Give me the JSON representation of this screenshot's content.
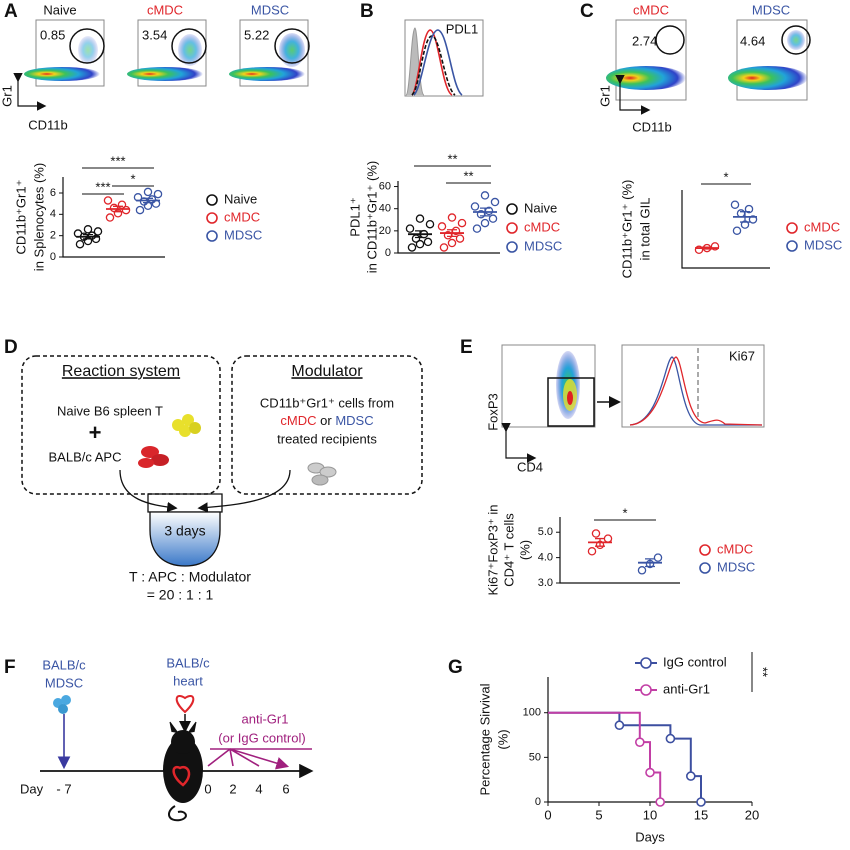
{
  "panel_letters": [
    "A",
    "B",
    "C",
    "D",
    "E",
    "F",
    "G"
  ],
  "panel_a_flow": {
    "axis_y": "Gr1",
    "axis_x": "CD11b",
    "plots": [
      {
        "label": "Naive",
        "gate": 0.85
      },
      {
        "label": "cMDC",
        "gate": 3.54
      },
      {
        "label": "MDSC",
        "gate": 5.22
      }
    ]
  },
  "panel_b_histogram": {
    "label": "PDL1"
  },
  "panel_c_flow": {
    "axis_y": "Gr1",
    "axis_x": "CD11b",
    "plots": [
      {
        "label": "cMDC",
        "gate": 2.74
      },
      {
        "label": "MDSC",
        "gate": 4.64
      }
    ]
  },
  "panel_d": {
    "reaction_title": "Reaction system",
    "reaction_lines": [
      "Naive B6 spleen T",
      "+",
      "BALB/c APC"
    ],
    "modulator_title": "Modulator",
    "modulator_lines": [
      "CD11b⁺Gr1⁺ cells from",
      "treated recipients"
    ],
    "modulator_source": [
      "cMDC",
      "or",
      "MDSC"
    ],
    "vessel_label": "3 days",
    "ratio_lines": [
      "T  : APC : Modulator",
      "=    20 : 1 : 1"
    ]
  },
  "panel_e_flow": {
    "axis_y": "FoxP3",
    "axis_x": "CD4",
    "histogram_label": "Ki67"
  },
  "panel_f": {
    "donor": [
      "BALB/c",
      "MDSC"
    ],
    "graft": [
      "BALB/c",
      "heart"
    ],
    "treatment": [
      "anti-Gr1",
      "(or IgG control)"
    ],
    "day_label": "Day",
    "days": [
      "- 7",
      "0",
      "2",
      "4",
      "6"
    ]
  },
  "chart_data": [
    {
      "type": "strip",
      "y_label": [
        "CD11b⁺Gr1⁺",
        "in Splenocytes (%)"
      ],
      "ylim": [
        0,
        7.5
      ],
      "yticks": [
        0,
        2,
        4,
        6
      ],
      "series": [
        {
          "name": "Naive",
          "color": "#111111",
          "values": [
            1.2,
            1.5,
            1.7,
            1.9,
            2.0,
            2.2,
            2.4,
            2.6
          ],
          "mean": 1.9,
          "sem": 0.2
        },
        {
          "name": "cMDC",
          "color": "#e0262b",
          "values": [
            3.7,
            4.1,
            4.4,
            4.6,
            4.9,
            5.3
          ],
          "mean": 4.5,
          "sem": 0.25
        },
        {
          "name": "MDSC",
          "color": "#3a55a4",
          "values": [
            4.4,
            4.8,
            5.0,
            5.2,
            5.4,
            5.6,
            5.9,
            6.1
          ],
          "mean": 5.3,
          "sem": 0.2
        }
      ],
      "significance": [
        "***",
        "***",
        "*"
      ]
    },
    {
      "type": "strip",
      "y_label": [
        "PDL1⁺",
        "in CD11b⁺Gr1⁺ (%)"
      ],
      "ylim": [
        0,
        65
      ],
      "yticks": [
        0,
        20,
        40,
        60
      ],
      "series": [
        {
          "name": "Naive",
          "color": "#111111",
          "values": [
            5,
            8,
            10,
            13,
            17,
            22,
            26,
            31
          ],
          "mean": 17,
          "sem": 3
        },
        {
          "name": "cMDC",
          "color": "#e0262b",
          "values": [
            5,
            9,
            13,
            16,
            20,
            24,
            27,
            32
          ],
          "mean": 18,
          "sem": 3
        },
        {
          "name": "MDSC",
          "color": "#3a55a4",
          "values": [
            22,
            27,
            31,
            35,
            38,
            42,
            46,
            52
          ],
          "mean": 37,
          "sem": 3.5
        }
      ],
      "significance": [
        "**",
        "**"
      ]
    },
    {
      "type": "strip",
      "y_label": [
        "CD11b⁺Gr1⁺ (%)",
        "in total GIL"
      ],
      "ylim": [
        0,
        9
      ],
      "series": [
        {
          "name": "cMDC",
          "color": "#e0262b",
          "values": [
            2.1,
            2.3,
            2.5
          ],
          "mean": 2.3,
          "sem": 0.1
        },
        {
          "name": "MDSC",
          "color": "#3a55a4",
          "values": [
            4.3,
            5.0,
            5.6,
            6.3,
            6.8,
            7.3
          ],
          "mean": 5.9,
          "sem": 0.6
        }
      ],
      "significance": [
        "*"
      ]
    },
    {
      "type": "strip",
      "y_label": [
        "Ki67⁺FoxP3⁺ in",
        "CD4⁺ T cells",
        "(%)"
      ],
      "ylim": [
        3,
        5.6
      ],
      "yticks": [
        {
          "value": 3,
          "label": "3.0"
        },
        {
          "value": 4,
          "label": "4.0"
        },
        {
          "value": 5,
          "label": "5.0"
        }
      ],
      "series": [
        {
          "name": "cMDC",
          "color": "#e0262b",
          "values": [
            4.25,
            4.5,
            4.75,
            4.95
          ],
          "mean": 4.6,
          "sem": 0.15
        },
        {
          "name": "MDSC",
          "color": "#3a55a4",
          "values": [
            3.5,
            3.75,
            4.0
          ],
          "mean": 3.8,
          "sem": 0.15
        }
      ],
      "significance": [
        "*"
      ]
    },
    {
      "type": "line",
      "x_label": "Days",
      "y_label": [
        "Percentage Sirvival",
        "(%)"
      ],
      "xlim": [
        0,
        20
      ],
      "xticks": [
        0,
        5,
        10,
        15,
        20
      ],
      "ylim": [
        0,
        140
      ],
      "yticks": [
        0,
        50,
        100
      ],
      "series": [
        {
          "name": "IgG control",
          "color": "#3c4fa0",
          "x": [
            0,
            7,
            7,
            12,
            12,
            14,
            14,
            15,
            15
          ],
          "values": [
            100,
            100,
            86,
            86,
            71,
            71,
            29,
            29,
            0
          ]
        },
        {
          "name": "anti-Gr1",
          "color": "#c23ea5",
          "x": [
            0,
            9,
            9,
            10,
            10,
            11,
            11
          ],
          "values": [
            100,
            100,
            67,
            67,
            33,
            33,
            0
          ]
        }
      ],
      "significance": [
        "**"
      ]
    }
  ]
}
